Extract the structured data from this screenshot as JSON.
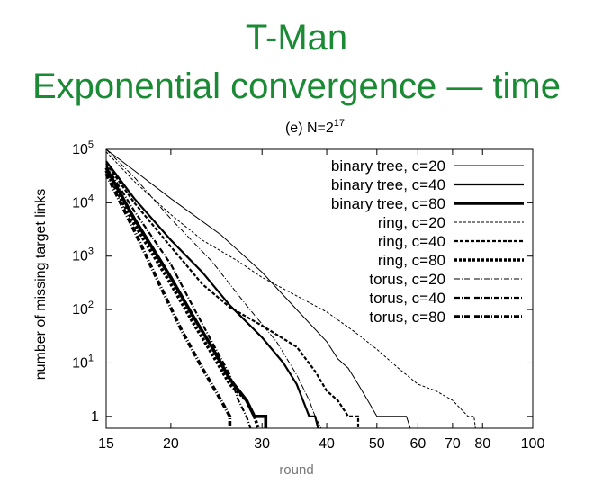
{
  "slide": {
    "title_line1": "T-Man",
    "title_line2": "Exponential convergence — time"
  },
  "chart_data": {
    "type": "line",
    "title_prefix": "(e) N=2",
    "title_superscript": "17",
    "xlabel": "round",
    "ylabel": "number of missing target links",
    "x_scale": "log",
    "y_scale": "log",
    "xlim": [
      15,
      100
    ],
    "ylim": [
      0.6,
      100000
    ],
    "x_ticks": [
      15,
      20,
      30,
      40,
      50,
      60,
      70,
      80,
      100
    ],
    "y_ticks": [
      {
        "value": 1,
        "base": "1",
        "exp": ""
      },
      {
        "value": 10,
        "base": "10",
        "exp": "1"
      },
      {
        "value": 100,
        "base": "10",
        "exp": "2"
      },
      {
        "value": 1000,
        "base": "10",
        "exp": "3"
      },
      {
        "value": 10000,
        "base": "10",
        "exp": "4"
      },
      {
        "value": 100000,
        "base": "10",
        "exp": "5"
      }
    ],
    "legend_position": "top-right",
    "series": [
      {
        "name": "binary tree, c=20",
        "width": 1,
        "dash": "",
        "color": "#000000",
        "points": [
          [
            15,
            100000
          ],
          [
            17,
            40000
          ],
          [
            20,
            12000
          ],
          [
            25,
            2500
          ],
          [
            30,
            500
          ],
          [
            35,
            100
          ],
          [
            40,
            25
          ],
          [
            42,
            12
          ],
          [
            44,
            8
          ],
          [
            46,
            4
          ],
          [
            48,
            2
          ],
          [
            50,
            1
          ],
          [
            57,
            1
          ],
          [
            58,
            0.6
          ]
        ]
      },
      {
        "name": "binary tree, c=40",
        "width": 2.2,
        "dash": "",
        "color": "#000000",
        "points": [
          [
            15,
            60000
          ],
          [
            17,
            12000
          ],
          [
            20,
            2000
          ],
          [
            23,
            500
          ],
          [
            26,
            120
          ],
          [
            30,
            30
          ],
          [
            33,
            10
          ],
          [
            35,
            4
          ],
          [
            36,
            2
          ],
          [
            37,
            1
          ],
          [
            38,
            1
          ],
          [
            38.5,
            0.6
          ]
        ]
      },
      {
        "name": "binary tree, c=80",
        "width": 3.6,
        "dash": "",
        "color": "#000000",
        "points": [
          [
            15,
            45000
          ],
          [
            17,
            5000
          ],
          [
            20,
            400
          ],
          [
            22,
            80
          ],
          [
            24,
            20
          ],
          [
            26,
            5
          ],
          [
            28,
            2
          ],
          [
            29,
            1
          ],
          [
            30.5,
            1
          ],
          [
            30.5,
            0.6
          ]
        ]
      },
      {
        "name": "ring, c=20",
        "width": 1,
        "dash": "3,2",
        "color": "#000000",
        "points": [
          [
            15,
            90000
          ],
          [
            17,
            25000
          ],
          [
            20,
            6000
          ],
          [
            23,
            2000
          ],
          [
            27,
            800
          ],
          [
            30,
            400
          ],
          [
            35,
            180
          ],
          [
            40,
            90
          ],
          [
            45,
            40
          ],
          [
            50,
            18
          ],
          [
            55,
            8
          ],
          [
            60,
            4
          ],
          [
            65,
            3
          ],
          [
            70,
            2
          ],
          [
            75,
            1
          ],
          [
            77,
            1
          ],
          [
            77.5,
            0.6
          ]
        ]
      },
      {
        "name": "ring, c=40",
        "width": 2.2,
        "dash": "4,2",
        "color": "#000000",
        "points": [
          [
            15,
            55000
          ],
          [
            17,
            10000
          ],
          [
            20,
            1500
          ],
          [
            23,
            300
          ],
          [
            26,
            110
          ],
          [
            30,
            50
          ],
          [
            35,
            20
          ],
          [
            38,
            7
          ],
          [
            40,
            3
          ],
          [
            42,
            2
          ],
          [
            44,
            1
          ],
          [
            46,
            1
          ],
          [
            46,
            0.6
          ]
        ]
      },
      {
        "name": "ring, c=80",
        "width": 3.6,
        "dash": "3,2",
        "color": "#000000",
        "points": [
          [
            15,
            40000
          ],
          [
            17,
            4000
          ],
          [
            20,
            300
          ],
          [
            22,
            60
          ],
          [
            24,
            15
          ],
          [
            26,
            4
          ],
          [
            28,
            2
          ],
          [
            29,
            1
          ],
          [
            29.5,
            0.6
          ]
        ]
      },
      {
        "name": "torus, c=20",
        "width": 1,
        "dash": "6,2,1,2",
        "color": "#000000",
        "points": [
          [
            15,
            100000
          ],
          [
            17,
            30000
          ],
          [
            20,
            5000
          ],
          [
            24,
            800
          ],
          [
            28,
            120
          ],
          [
            32,
            25
          ],
          [
            35,
            6
          ],
          [
            37,
            2
          ],
          [
            38,
            1
          ],
          [
            39,
            0.6
          ]
        ]
      },
      {
        "name": "torus, c=40",
        "width": 2.2,
        "dash": "6,2,1,2",
        "color": "#000000",
        "points": [
          [
            15,
            50000
          ],
          [
            17,
            7000
          ],
          [
            20,
            700
          ],
          [
            22,
            120
          ],
          [
            24,
            25
          ],
          [
            26,
            6
          ],
          [
            27,
            2
          ],
          [
            28,
            1
          ],
          [
            28.5,
            0.6
          ]
        ]
      },
      {
        "name": "torus, c=80",
        "width": 3.6,
        "dash": "6,2,1,2",
        "color": "#000000",
        "points": [
          [
            15,
            35000
          ],
          [
            17,
            3000
          ],
          [
            19,
            300
          ],
          [
            21,
            40
          ],
          [
            23,
            8
          ],
          [
            25,
            2
          ],
          [
            26,
            1
          ],
          [
            26,
            0.6
          ]
        ]
      }
    ]
  }
}
